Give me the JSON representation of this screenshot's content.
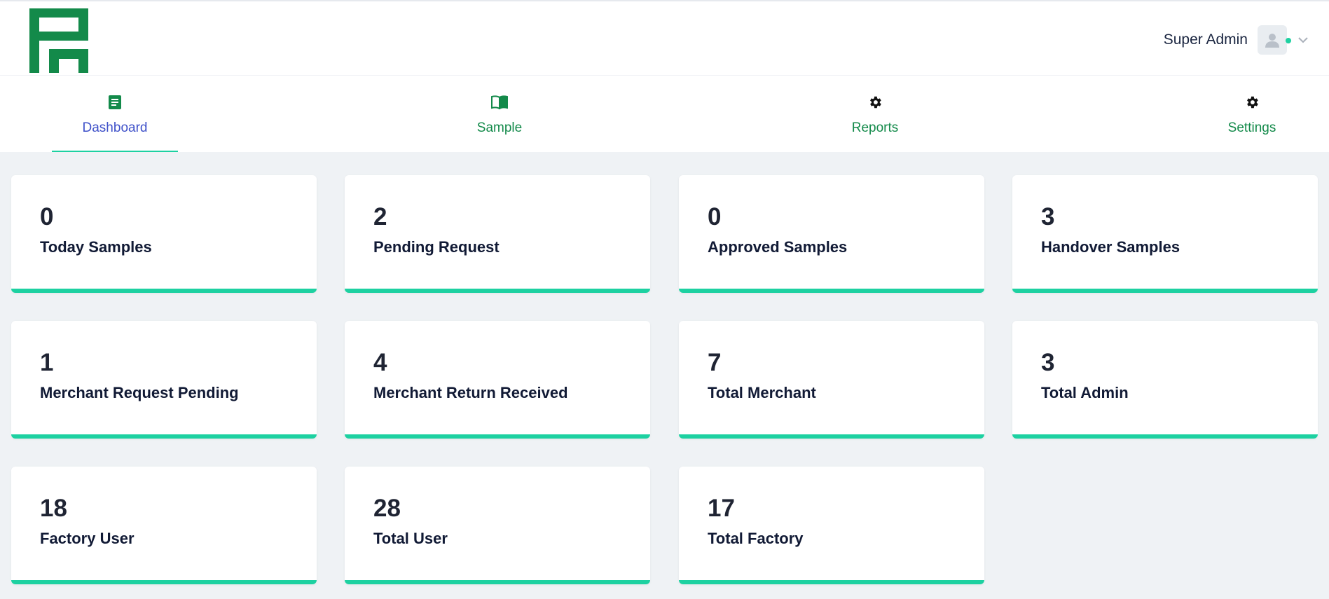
{
  "header": {
    "user_name": "Super Admin",
    "accent_color": "#1dd1a1",
    "brand_color": "#138a4a"
  },
  "nav": {
    "items": [
      {
        "label": "Dashboard",
        "icon": "document-icon",
        "active": true
      },
      {
        "label": "Sample",
        "icon": "book-icon",
        "active": false
      },
      {
        "label": "Reports",
        "icon": "gear-icon",
        "active": false
      },
      {
        "label": "Settings",
        "icon": "gear-icon",
        "active": false
      }
    ]
  },
  "cards": [
    {
      "count": "0",
      "label": "Today Samples"
    },
    {
      "count": "2",
      "label": "Pending Request"
    },
    {
      "count": "0",
      "label": "Approved Samples"
    },
    {
      "count": "3",
      "label": "Handover Samples"
    },
    {
      "count": "1",
      "label": "Merchant Request Pending"
    },
    {
      "count": "4",
      "label": "Merchant Return Received"
    },
    {
      "count": "7",
      "label": "Total Merchant"
    },
    {
      "count": "3",
      "label": "Total Admin"
    },
    {
      "count": "18",
      "label": "Factory User"
    },
    {
      "count": "28",
      "label": "Total User"
    },
    {
      "count": "17",
      "label": "Total Factory"
    }
  ]
}
